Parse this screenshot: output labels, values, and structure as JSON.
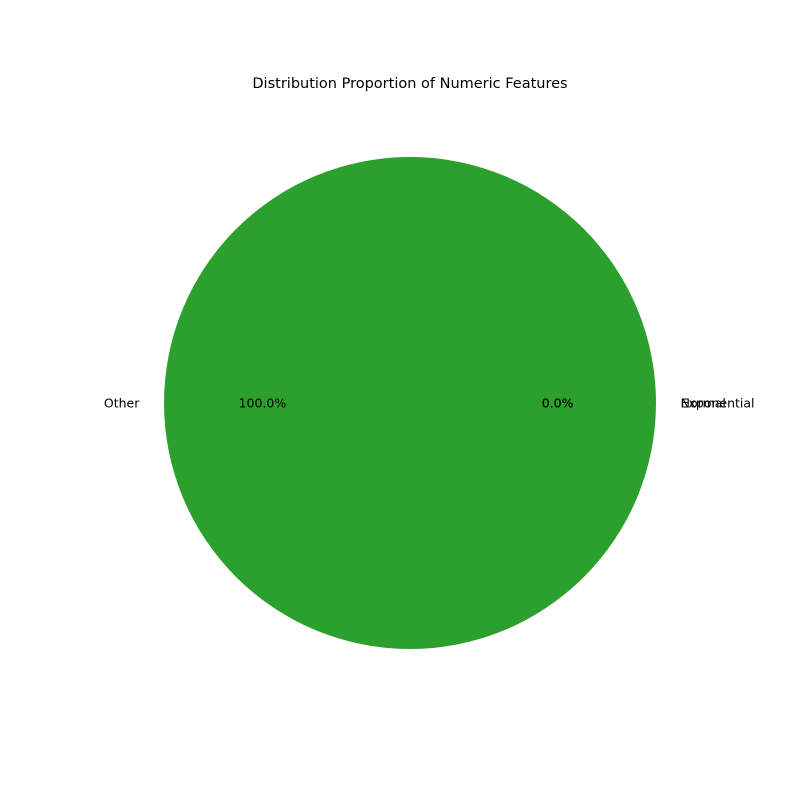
{
  "chart_data": {
    "type": "pie",
    "title": "Distribution Proportion of Numeric Features",
    "slices": [
      {
        "label": "Normal",
        "value": 0.0,
        "pct_label": "0.0%",
        "color": "#1f77b4"
      },
      {
        "label": "Exponential",
        "value": 0.0,
        "pct_label": "0.0%",
        "color": "#ff7f0e"
      },
      {
        "label": "Other",
        "value": 100.0,
        "pct_label": "100.0%",
        "color": "#2ca02c"
      }
    ],
    "start_angle_deg": 0,
    "legend": "none"
  }
}
